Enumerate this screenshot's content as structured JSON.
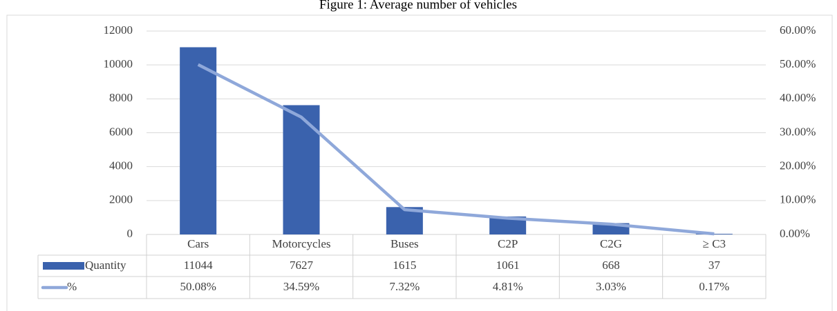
{
  "chart_data": {
    "type": "bar",
    "title": "Figure 1: Average number of vehicles",
    "categories": [
      "Cars",
      "Motorcycles",
      "Buses",
      "C2P",
      "C2G",
      "≥ C3"
    ],
    "series": [
      {
        "name": "Quantity",
        "color": "#3a62ad",
        "type": "bar",
        "values": [
          11044,
          7627,
          1615,
          1061,
          668,
          37
        ]
      },
      {
        "name": "%",
        "color": "#8fa8da",
        "type": "line",
        "axis": "y2",
        "values": [
          50.08,
          34.59,
          7.32,
          4.81,
          3.03,
          0.17
        ],
        "value_labels": [
          "50.08%",
          "34.59%",
          "7.32%",
          "4.81%",
          "3.03%",
          "0.17%"
        ]
      }
    ],
    "ylim": [
      0,
      12000
    ],
    "yticks": [
      0,
      2000,
      4000,
      6000,
      8000,
      10000,
      12000
    ],
    "y2lim": [
      0,
      60
    ],
    "y2ticks": [
      {
        "value": 0,
        "label": "0.00%"
      },
      {
        "value": 10,
        "label": "10.00%"
      },
      {
        "value": 20,
        "label": "20.00%"
      },
      {
        "value": 30,
        "label": "30.00%"
      },
      {
        "value": 40,
        "label": "40.00%"
      },
      {
        "value": 50,
        "label": "50.00%"
      },
      {
        "value": 60,
        "label": "60.00%"
      }
    ],
    "grid": true
  }
}
